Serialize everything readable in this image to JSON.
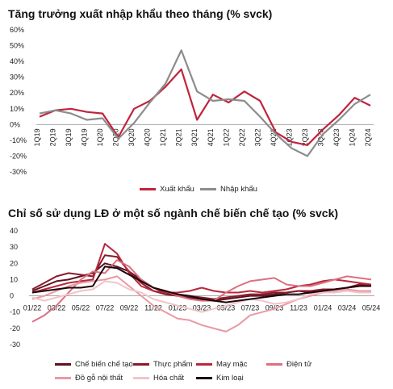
{
  "chart_data": [
    {
      "type": "line",
      "title": "Tăng trưởng xuất nhập khẩu theo tháng (% svck)",
      "x": [
        "1Q19",
        "2Q19",
        "3Q19",
        "4Q19",
        "1Q20",
        "2Q20",
        "3Q20",
        "4Q20",
        "1Q21",
        "2Q21",
        "3Q21",
        "4Q21",
        "1Q22",
        "2Q22",
        "3Q22",
        "4Q22",
        "1Q23",
        "2Q23",
        "3Q23",
        "4Q23",
        "1Q24",
        "2Q24"
      ],
      "ylim": [
        -30,
        60
      ],
      "yticks": [
        "60%",
        "50%",
        "40%",
        "30%",
        "20%",
        "10%",
        "0%",
        "-10%",
        "-20%",
        "-30%"
      ],
      "grid": false,
      "legend": "bottom",
      "series": [
        {
          "name": "Xuất khẩu",
          "color": "#c0243c",
          "values": [
            5,
            9,
            10,
            8,
            7,
            -8,
            10,
            15,
            24,
            35,
            3,
            19,
            14,
            21,
            15,
            -5,
            -11,
            -13,
            -3,
            6,
            17,
            12
          ]
        },
        {
          "name": "Nhập khẩu",
          "color": "#8c8c8c",
          "values": [
            7,
            9,
            7,
            3,
            4,
            -9,
            1,
            14,
            26,
            47,
            21,
            15,
            16,
            15,
            5,
            -6,
            -15,
            -20,
            -6,
            3,
            13,
            19
          ]
        }
      ]
    },
    {
      "type": "line",
      "title": "Chỉ số sử dụng LĐ ở một số ngành chế biến chế tạo (% svck)",
      "x": [
        "01/22",
        "02/22",
        "03/22",
        "04/22",
        "05/22",
        "06/22",
        "07/22",
        "08/22",
        "09/22",
        "10/22",
        "11/22",
        "12/22",
        "01/23",
        "02/23",
        "03/23",
        "04/23",
        "05/23",
        "06/23",
        "07/23",
        "08/23",
        "09/23",
        "10/23",
        "11/23",
        "12/23",
        "01/24",
        "02/24",
        "03/24",
        "04/24",
        "05/24"
      ],
      "xticks": [
        "01/22",
        "03/22",
        "05/22",
        "07/22",
        "09/22",
        "11/22",
        "01/23",
        "03/23",
        "05/23",
        "07/23",
        "09/23",
        "11/23",
        "01/24",
        "03/24",
        "05/24"
      ],
      "ylim": [
        -30,
        40
      ],
      "yticks": [
        "40",
        "30",
        "20",
        "10",
        "0",
        "-10",
        "-20",
        "-30"
      ],
      "grid": false,
      "legend": "bottom",
      "series": [
        {
          "name": "Chế biến chế tạo",
          "color": "#5a1420",
          "values": [
            3,
            6,
            9,
            10,
            12,
            14,
            20,
            18,
            15,
            10,
            5,
            2,
            0,
            -1,
            -2,
            -3,
            -2,
            -1,
            0,
            0,
            1,
            2,
            3,
            2,
            3,
            4,
            5,
            6,
            6
          ]
        },
        {
          "name": "Thực phẩm",
          "color": "#8b1a2a",
          "values": [
            4,
            8,
            12,
            14,
            13,
            12,
            25,
            24,
            15,
            8,
            3,
            1,
            0,
            0,
            -1,
            -2,
            -1,
            0,
            1,
            1,
            2,
            2,
            3,
            3,
            4,
            4,
            5,
            7,
            7
          ]
        },
        {
          "name": "May mặc",
          "color": "#b8283c",
          "values": [
            2,
            4,
            6,
            8,
            9,
            10,
            32,
            26,
            14,
            6,
            3,
            2,
            2,
            3,
            5,
            3,
            2,
            2,
            3,
            2,
            3,
            4,
            6,
            7,
            9,
            10,
            9,
            8,
            7
          ]
        },
        {
          "name": "Điện tử",
          "color": "#dc7080",
          "values": [
            -16,
            -12,
            -6,
            2,
            10,
            15,
            14,
            22,
            18,
            10,
            5,
            3,
            0,
            -2,
            -3,
            -3,
            2,
            6,
            9,
            10,
            11,
            7,
            6,
            6,
            8,
            10,
            12,
            11,
            10
          ]
        },
        {
          "name": "Đồ gỗ nội thất",
          "color": "#e89aa3",
          "values": [
            -2,
            0,
            3,
            6,
            8,
            9,
            10,
            12,
            6,
            0,
            -6,
            -10,
            -14,
            -15,
            -18,
            -20,
            -22,
            -18,
            -12,
            -10,
            -8,
            -5,
            -2,
            0,
            2,
            3,
            4,
            3,
            3
          ]
        },
        {
          "name": "Hóa chất",
          "color": "#f2c4c9",
          "values": [
            -1,
            -3,
            -1,
            1,
            3,
            4,
            9,
            8,
            4,
            2,
            -2,
            -4,
            -6,
            -8,
            -10,
            -8,
            -6,
            -4,
            -2,
            -3,
            -5,
            -4,
            -2,
            1,
            2,
            2,
            3,
            2,
            2
          ]
        },
        {
          "name": "Kim loại",
          "color": "#1c0508",
          "values": [
            2,
            3,
            4,
            5,
            5,
            6,
            18,
            17,
            13,
            9,
            5,
            3,
            1,
            0,
            -2,
            -3,
            -4,
            -3,
            -2,
            -1,
            0,
            1,
            1,
            2,
            3,
            4,
            5,
            6,
            6
          ]
        }
      ]
    }
  ]
}
